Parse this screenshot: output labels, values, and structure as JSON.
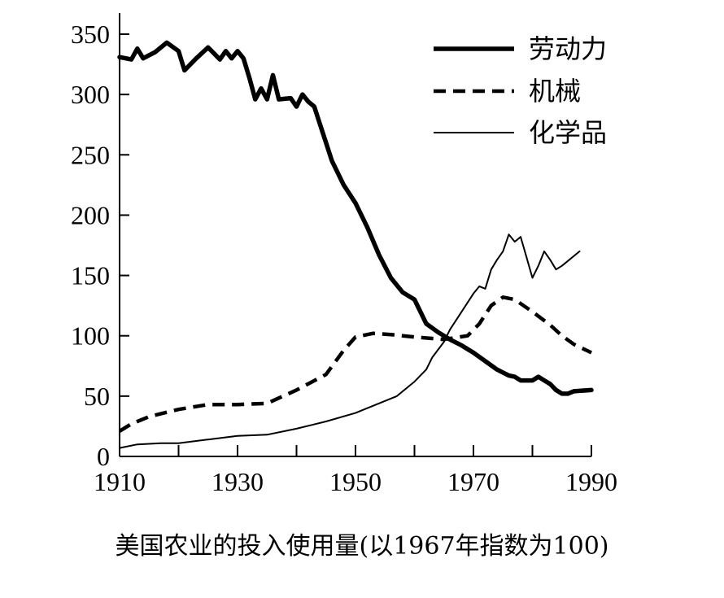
{
  "caption": "美国农业的投入使用量(以1967年指数为100)",
  "chart_data": {
    "type": "line",
    "title": "",
    "xlabel": "",
    "ylabel": "",
    "xlim": [
      1910,
      1990
    ],
    "ylim": [
      0,
      350
    ],
    "xticks": [
      1910,
      1930,
      1950,
      1970,
      1990
    ],
    "xminor": [
      1920,
      1940,
      1960,
      1980
    ],
    "yticks": [
      0,
      50,
      100,
      150,
      200,
      250,
      300,
      350
    ],
    "legend_position": "top-right",
    "grid": false,
    "series": [
      {
        "name": "劳动力",
        "style": "thick-solid",
        "points": [
          [
            1910,
            331
          ],
          [
            1912,
            329
          ],
          [
            1913,
            338
          ],
          [
            1914,
            330
          ],
          [
            1916,
            335
          ],
          [
            1918,
            343
          ],
          [
            1920,
            336
          ],
          [
            1921,
            320
          ],
          [
            1923,
            330
          ],
          [
            1925,
            339
          ],
          [
            1927,
            329
          ],
          [
            1928,
            336
          ],
          [
            1929,
            330
          ],
          [
            1930,
            336
          ],
          [
            1931,
            330
          ],
          [
            1932,
            314
          ],
          [
            1933,
            296
          ],
          [
            1934,
            305
          ],
          [
            1935,
            296
          ],
          [
            1936,
            316
          ],
          [
            1937,
            296
          ],
          [
            1939,
            297
          ],
          [
            1940,
            290
          ],
          [
            1941,
            300
          ],
          [
            1942,
            294
          ],
          [
            1943,
            290
          ],
          [
            1944,
            275
          ],
          [
            1945,
            260
          ],
          [
            1946,
            245
          ],
          [
            1948,
            225
          ],
          [
            1950,
            210
          ],
          [
            1952,
            190
          ],
          [
            1954,
            167
          ],
          [
            1956,
            148
          ],
          [
            1958,
            136
          ],
          [
            1960,
            130
          ],
          [
            1961,
            120
          ],
          [
            1962,
            110
          ],
          [
            1964,
            103
          ],
          [
            1966,
            97
          ],
          [
            1968,
            92
          ],
          [
            1970,
            86
          ],
          [
            1972,
            79
          ],
          [
            1974,
            72
          ],
          [
            1976,
            67
          ],
          [
            1977,
            66
          ],
          [
            1978,
            63
          ],
          [
            1980,
            63
          ],
          [
            1981,
            66
          ],
          [
            1982,
            63
          ],
          [
            1983,
            60
          ],
          [
            1984,
            55
          ],
          [
            1985,
            52
          ],
          [
            1986,
            52
          ],
          [
            1987,
            54
          ],
          [
            1990,
            55
          ]
        ]
      },
      {
        "name": "机械",
        "style": "dashed",
        "points": [
          [
            1910,
            21
          ],
          [
            1912,
            27
          ],
          [
            1915,
            33
          ],
          [
            1920,
            39
          ],
          [
            1925,
            43
          ],
          [
            1930,
            43
          ],
          [
            1935,
            44
          ],
          [
            1940,
            55
          ],
          [
            1945,
            68
          ],
          [
            1948,
            88
          ],
          [
            1950,
            99
          ],
          [
            1953,
            102
          ],
          [
            1956,
            101
          ],
          [
            1960,
            99
          ],
          [
            1965,
            97
          ],
          [
            1969,
            100
          ],
          [
            1971,
            110
          ],
          [
            1973,
            125
          ],
          [
            1975,
            132
          ],
          [
            1977,
            130
          ],
          [
            1980,
            120
          ],
          [
            1983,
            109
          ],
          [
            1985,
            100
          ],
          [
            1987,
            93
          ],
          [
            1990,
            86
          ]
        ]
      },
      {
        "name": "化学品",
        "style": "thin-solid",
        "points": [
          [
            1910,
            7
          ],
          [
            1913,
            10
          ],
          [
            1917,
            11
          ],
          [
            1920,
            11
          ],
          [
            1925,
            14
          ],
          [
            1930,
            17
          ],
          [
            1935,
            18
          ],
          [
            1940,
            23
          ],
          [
            1945,
            29
          ],
          [
            1950,
            36
          ],
          [
            1953,
            42
          ],
          [
            1957,
            50
          ],
          [
            1960,
            62
          ],
          [
            1962,
            72
          ],
          [
            1963,
            82
          ],
          [
            1965,
            95
          ],
          [
            1966,
            105
          ],
          [
            1968,
            120
          ],
          [
            1970,
            135
          ],
          [
            1971,
            141
          ],
          [
            1972,
            139
          ],
          [
            1973,
            155
          ],
          [
            1974,
            163
          ],
          [
            1975,
            170
          ],
          [
            1976,
            184
          ],
          [
            1977,
            178
          ],
          [
            1978,
            182
          ],
          [
            1979,
            165
          ],
          [
            1980,
            148
          ],
          [
            1981,
            158
          ],
          [
            1982,
            170
          ],
          [
            1983,
            163
          ],
          [
            1984,
            155
          ],
          [
            1985,
            158
          ],
          [
            1986,
            162
          ],
          [
            1988,
            170
          ]
        ]
      }
    ]
  }
}
